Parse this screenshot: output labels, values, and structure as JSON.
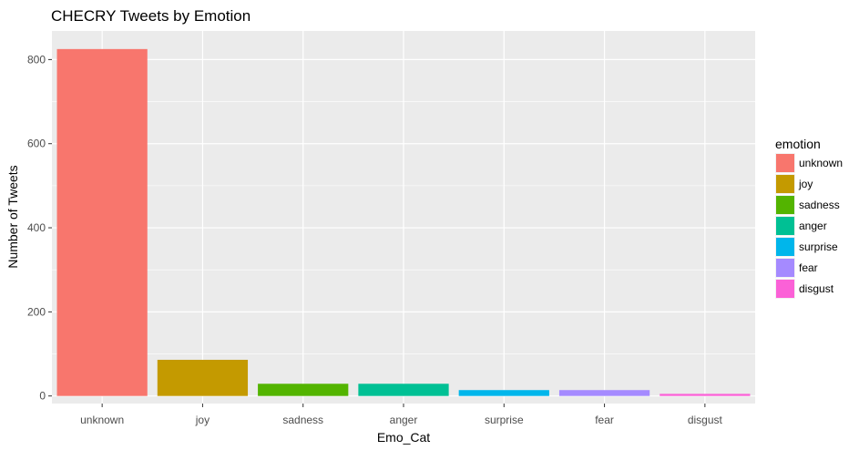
{
  "chart_data": {
    "type": "bar",
    "title": "CHECRY Tweets by Emotion",
    "xlabel": "Emo_Cat",
    "ylabel": "Number of Tweets",
    "categories": [
      "unknown",
      "joy",
      "sadness",
      "anger",
      "surprise",
      "fear",
      "disgust"
    ],
    "values": [
      825,
      86,
      29,
      29,
      14,
      14,
      5
    ],
    "colors": [
      "#F8766D",
      "#C49A00",
      "#53B400",
      "#00C094",
      "#00B6EB",
      "#A58AFF",
      "#FB61D7"
    ],
    "ylim": [
      -18,
      868
    ],
    "yticks": [
      0,
      200,
      400,
      600,
      800
    ],
    "ytick_labels": [
      "0",
      "200",
      "400",
      "600",
      "800"
    ],
    "legend": {
      "title": "emotion",
      "position": "right",
      "entries": [
        "unknown",
        "joy",
        "sadness",
        "anger",
        "surprise",
        "fear",
        "disgust"
      ]
    },
    "panel_background": "#EBEBEB",
    "grid": true
  }
}
